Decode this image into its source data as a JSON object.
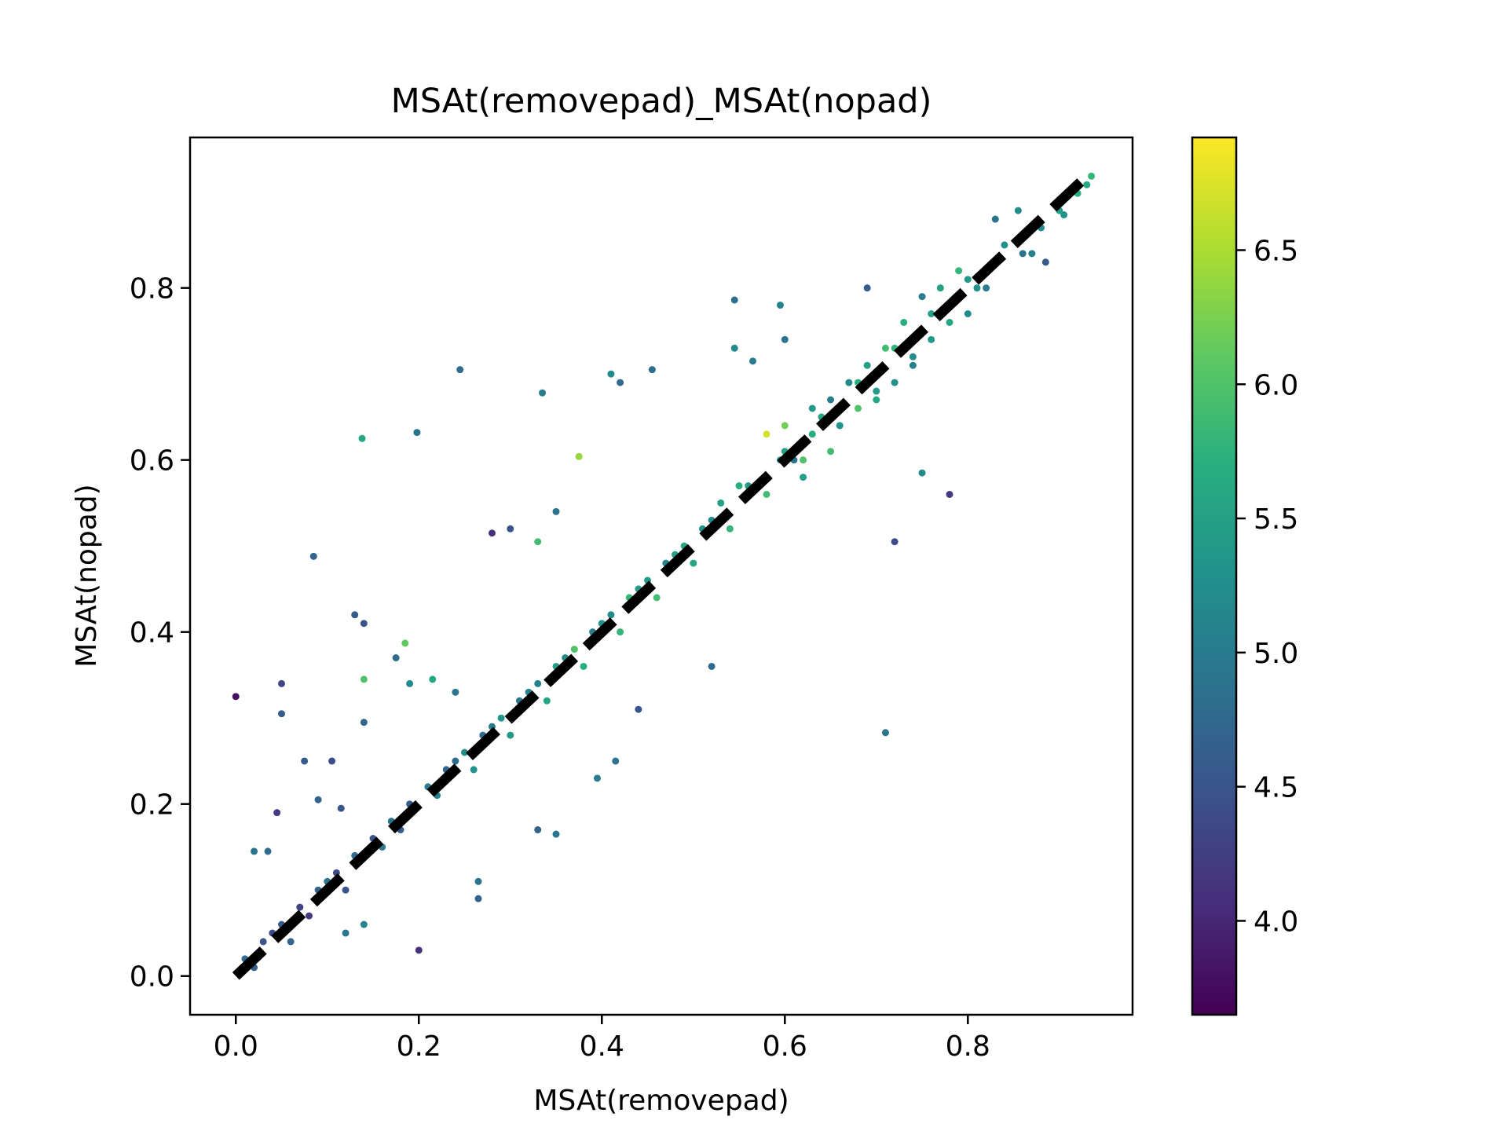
{
  "chart_data": {
    "type": "scatter",
    "title": "MSAt(removepad)_MSAt(nopad)",
    "xlabel": "MSAt(removepad)",
    "ylabel": "MSAt(nopad)",
    "xlim": [
      -0.05,
      0.98
    ],
    "ylim": [
      -0.045,
      0.975
    ],
    "xticks": [
      0.0,
      0.2,
      0.4,
      0.6,
      0.8
    ],
    "xtick_labels": [
      "0.0",
      "0.2",
      "0.4",
      "0.6",
      "0.8"
    ],
    "yticks": [
      0.0,
      0.2,
      0.4,
      0.6,
      0.8
    ],
    "ytick_labels": [
      "0.0",
      "0.2",
      "0.4",
      "0.6",
      "0.8"
    ],
    "grid": false,
    "colormap": "viridis",
    "colorbar": {
      "range": [
        3.65,
        6.92
      ],
      "ticks": [
        4.0,
        4.5,
        5.0,
        5.5,
        6.0,
        6.5
      ],
      "tick_labels": [
        "4.0",
        "4.5",
        "5.0",
        "5.5",
        "6.0",
        "6.5"
      ]
    },
    "reference_line": {
      "from": [
        0.0,
        0.0
      ],
      "to": [
        0.93,
        0.93
      ],
      "style": "dashed",
      "color": "#000000"
    },
    "series": [
      {
        "color_by": "value",
        "points": [
          [
            0.0,
            0.325,
            3.8
          ],
          [
            0.05,
            0.34,
            4.3
          ],
          [
            0.05,
            0.305,
            4.6
          ],
          [
            0.085,
            0.488,
            4.7
          ],
          [
            0.035,
            0.145,
            4.8
          ],
          [
            0.02,
            0.145,
            4.9
          ],
          [
            0.045,
            0.19,
            4.2
          ],
          [
            0.075,
            0.25,
            4.6
          ],
          [
            0.105,
            0.25,
            4.4
          ],
          [
            0.115,
            0.195,
            4.5
          ],
          [
            0.09,
            0.205,
            4.7
          ],
          [
            0.138,
            0.625,
            5.6
          ],
          [
            0.198,
            0.632,
            4.9
          ],
          [
            0.245,
            0.705,
            4.8
          ],
          [
            0.335,
            0.678,
            5.0
          ],
          [
            0.13,
            0.42,
            4.6
          ],
          [
            0.14,
            0.41,
            4.5
          ],
          [
            0.14,
            0.345,
            6.0
          ],
          [
            0.185,
            0.387,
            6.1
          ],
          [
            0.14,
            0.295,
            4.7
          ],
          [
            0.175,
            0.37,
            4.8
          ],
          [
            0.19,
            0.34,
            5.2
          ],
          [
            0.215,
            0.345,
            5.6
          ],
          [
            0.24,
            0.33,
            4.9
          ],
          [
            0.2,
            0.03,
            4.1
          ],
          [
            0.265,
            0.11,
            4.9
          ],
          [
            0.265,
            0.09,
            4.7
          ],
          [
            0.14,
            0.06,
            5.1
          ],
          [
            0.12,
            0.05,
            4.9
          ],
          [
            0.375,
            0.604,
            6.4
          ],
          [
            0.41,
            0.7,
            5.2
          ],
          [
            0.42,
            0.69,
            4.8
          ],
          [
            0.455,
            0.705,
            4.8
          ],
          [
            0.545,
            0.786,
            4.8
          ],
          [
            0.595,
            0.78,
            5.1
          ],
          [
            0.6,
            0.74,
            4.9
          ],
          [
            0.545,
            0.73,
            5.2
          ],
          [
            0.565,
            0.715,
            5.0
          ],
          [
            0.28,
            0.515,
            4.1
          ],
          [
            0.3,
            0.52,
            4.5
          ],
          [
            0.33,
            0.505,
            5.9
          ],
          [
            0.35,
            0.54,
            4.9
          ],
          [
            0.52,
            0.36,
            4.8
          ],
          [
            0.71,
            0.283,
            4.9
          ],
          [
            0.78,
            0.56,
            4.2
          ],
          [
            0.72,
            0.505,
            4.4
          ],
          [
            0.75,
            0.585,
            5.2
          ],
          [
            0.415,
            0.25,
            4.9
          ],
          [
            0.33,
            0.17,
            4.7
          ],
          [
            0.35,
            0.165,
            4.9
          ],
          [
            0.395,
            0.23,
            5.0
          ],
          [
            0.44,
            0.31,
            4.5
          ],
          [
            0.93,
            0.92,
            5.6
          ],
          [
            0.935,
            0.93,
            5.8
          ],
          [
            0.905,
            0.885,
            5.3
          ],
          [
            0.87,
            0.84,
            5.1
          ],
          [
            0.885,
            0.83,
            4.6
          ],
          [
            0.855,
            0.89,
            5.2
          ],
          [
            0.83,
            0.88,
            4.9
          ],
          [
            0.69,
            0.8,
            4.6
          ],
          [
            0.61,
            0.6,
            4.9
          ],
          [
            0.62,
            0.58,
            5.5
          ],
          [
            0.65,
            0.61,
            5.9
          ],
          [
            0.63,
            0.63,
            5.7
          ],
          [
            0.6,
            0.64,
            6.2
          ],
          [
            0.58,
            0.63,
            6.7
          ],
          [
            0.595,
            0.6,
            5.4
          ],
          [
            0.66,
            0.64,
            5.8
          ],
          [
            0.68,
            0.66,
            6.0
          ],
          [
            0.7,
            0.67,
            5.6
          ],
          [
            0.72,
            0.69,
            5.3
          ],
          [
            0.74,
            0.71,
            5.1
          ],
          [
            0.76,
            0.74,
            5.4
          ],
          [
            0.78,
            0.76,
            5.6
          ],
          [
            0.8,
            0.77,
            5.2
          ],
          [
            0.77,
            0.8,
            5.5
          ],
          [
            0.79,
            0.82,
            5.8
          ],
          [
            0.81,
            0.8,
            5.3
          ],
          [
            0.75,
            0.79,
            5.0
          ],
          [
            0.73,
            0.76,
            5.7
          ],
          [
            0.71,
            0.73,
            5.9
          ],
          [
            0.69,
            0.71,
            5.5
          ],
          [
            0.67,
            0.69,
            5.2
          ],
          [
            0.65,
            0.67,
            5.0
          ],
          [
            0.63,
            0.66,
            5.4
          ],
          [
            0.55,
            0.57,
            5.7
          ],
          [
            0.53,
            0.55,
            5.5
          ],
          [
            0.51,
            0.52,
            5.3
          ],
          [
            0.49,
            0.5,
            5.6
          ],
          [
            0.47,
            0.48,
            5.1
          ],
          [
            0.45,
            0.46,
            5.4
          ],
          [
            0.43,
            0.44,
            5.8
          ],
          [
            0.41,
            0.42,
            5.2
          ],
          [
            0.39,
            0.4,
            5.0
          ],
          [
            0.37,
            0.38,
            6.0
          ],
          [
            0.35,
            0.36,
            5.5
          ],
          [
            0.33,
            0.34,
            5.1
          ],
          [
            0.31,
            0.32,
            4.9
          ],
          [
            0.29,
            0.3,
            5.3
          ],
          [
            0.27,
            0.28,
            4.8
          ],
          [
            0.25,
            0.26,
            5.2
          ],
          [
            0.23,
            0.24,
            4.7
          ],
          [
            0.21,
            0.22,
            5.0
          ],
          [
            0.19,
            0.2,
            4.6
          ],
          [
            0.17,
            0.18,
            4.9
          ],
          [
            0.15,
            0.16,
            4.5
          ],
          [
            0.13,
            0.14,
            4.8
          ],
          [
            0.11,
            0.12,
            4.4
          ],
          [
            0.09,
            0.1,
            4.7
          ],
          [
            0.07,
            0.08,
            4.3
          ],
          [
            0.05,
            0.06,
            4.6
          ],
          [
            0.03,
            0.04,
            4.5
          ],
          [
            0.01,
            0.02,
            4.8
          ],
          [
            0.02,
            0.01,
            4.6
          ],
          [
            0.04,
            0.05,
            4.4
          ],
          [
            0.06,
            0.04,
            4.7
          ],
          [
            0.08,
            0.07,
            4.2
          ],
          [
            0.1,
            0.11,
            4.9
          ],
          [
            0.12,
            0.1,
            4.5
          ],
          [
            0.16,
            0.15,
            5.0
          ],
          [
            0.18,
            0.17,
            4.6
          ],
          [
            0.22,
            0.21,
            5.1
          ],
          [
            0.24,
            0.25,
            4.8
          ],
          [
            0.26,
            0.24,
            5.3
          ],
          [
            0.28,
            0.29,
            5.0
          ],
          [
            0.3,
            0.28,
            5.4
          ],
          [
            0.32,
            0.33,
            5.1
          ],
          [
            0.34,
            0.32,
            5.6
          ],
          [
            0.36,
            0.37,
            5.2
          ],
          [
            0.38,
            0.36,
            5.7
          ],
          [
            0.4,
            0.41,
            5.3
          ],
          [
            0.42,
            0.4,
            5.8
          ],
          [
            0.44,
            0.45,
            5.4
          ],
          [
            0.46,
            0.44,
            5.9
          ],
          [
            0.48,
            0.49,
            5.5
          ],
          [
            0.5,
            0.48,
            5.6
          ],
          [
            0.52,
            0.53,
            5.2
          ],
          [
            0.54,
            0.52,
            5.8
          ],
          [
            0.56,
            0.57,
            5.4
          ],
          [
            0.58,
            0.56,
            5.9
          ],
          [
            0.6,
            0.61,
            5.5
          ],
          [
            0.62,
            0.6,
            6.0
          ],
          [
            0.64,
            0.65,
            5.6
          ],
          [
            0.66,
            0.64,
            5.3
          ],
          [
            0.68,
            0.69,
            5.7
          ],
          [
            0.7,
            0.68,
            5.4
          ],
          [
            0.72,
            0.73,
            5.8
          ],
          [
            0.74,
            0.72,
            5.2
          ],
          [
            0.76,
            0.77,
            5.5
          ],
          [
            0.78,
            0.78,
            5.1
          ],
          [
            0.8,
            0.81,
            5.4
          ],
          [
            0.82,
            0.8,
            5.0
          ],
          [
            0.84,
            0.85,
            5.3
          ],
          [
            0.86,
            0.84,
            4.9
          ],
          [
            0.88,
            0.87,
            5.2
          ],
          [
            0.9,
            0.89,
            5.5
          ],
          [
            0.92,
            0.91,
            5.7
          ]
        ]
      }
    ]
  }
}
